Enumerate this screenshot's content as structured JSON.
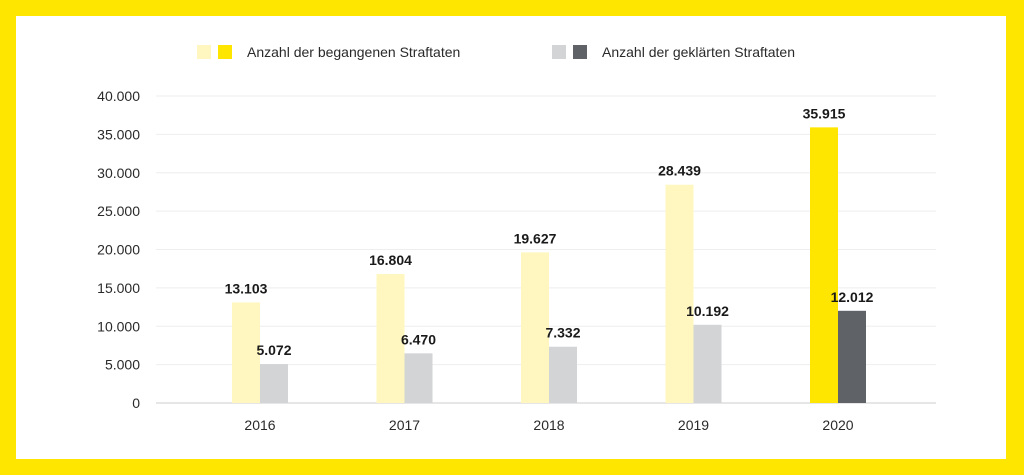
{
  "chart_data": {
    "type": "bar",
    "categories": [
      "2016",
      "2017",
      "2018",
      "2019",
      "2020"
    ],
    "series": [
      {
        "name": "Anzahl der begangenen Straftaten",
        "values": [
          13103,
          16804,
          19627,
          28439,
          35915
        ],
        "value_labels": [
          "13.103",
          "16.804",
          "19.627",
          "28.439",
          "35.915"
        ],
        "color": "#FFF7BF",
        "highlight_color": "#FFE600"
      },
      {
        "name": "Anzahl der geklärten Straftaten",
        "values": [
          5072,
          6470,
          7332,
          10192,
          12012
        ],
        "value_labels": [
          "5.072",
          "6.470",
          "7.332",
          "10.192",
          "12.012"
        ],
        "color": "#D2D4D6",
        "highlight_color": "#5F6368"
      }
    ],
    "highlighted_category": "2020",
    "ylim": [
      0,
      40000
    ],
    "yticks": [
      0,
      5000,
      10000,
      15000,
      20000,
      25000,
      30000,
      35000,
      40000
    ],
    "ytick_labels": [
      "0",
      "5.000",
      "10.000",
      "15.000",
      "20.000",
      "25.000",
      "30.000",
      "35.000",
      "40.000"
    ],
    "xlabel": "",
    "ylabel": "",
    "title": "",
    "grid": true,
    "legend_position": "top"
  },
  "colors": {
    "frame": "#FFE600",
    "background": "#FFFFFF",
    "gridline": "#EEEEEE",
    "axis_line": "#CCCCCC",
    "text": "#2A2A2A"
  }
}
